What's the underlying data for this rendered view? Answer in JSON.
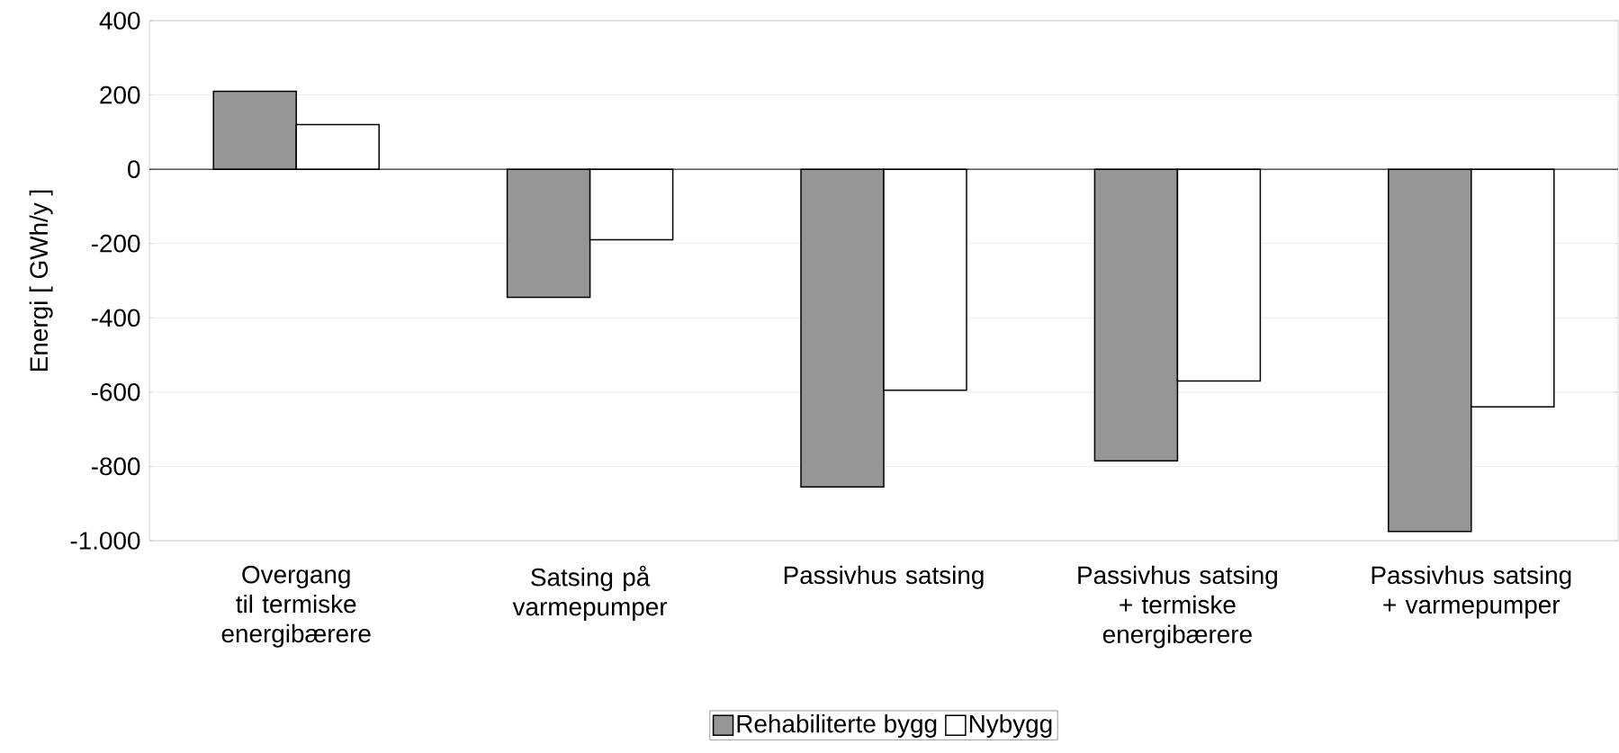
{
  "chart_data": {
    "type": "bar",
    "ylabel": "Energi [ GWh/y ]",
    "categories": [
      "Overgang til termiske energibærere",
      "Satsing på varmepumper",
      "Passivhus satsing",
      "Passivhus satsing + termiske energibærere",
      "Passivhus satsing + varmepumper"
    ],
    "series": [
      {
        "name": "Rehabiliterte bygg",
        "color": "#969696",
        "values": [
          210,
          -345,
          -855,
          -785,
          -975
        ]
      },
      {
        "name": "Nybygg",
        "color": "#ffffff",
        "values": [
          120,
          -190,
          -595,
          -570,
          -640
        ]
      }
    ],
    "ylim": [
      -1000,
      400
    ],
    "yticks": [
      {
        "value": -1000,
        "label": "-1.000"
      },
      -800,
      -600,
      -400,
      -200,
      0,
      200,
      400
    ],
    "grid": "y",
    "legend": "bottom"
  }
}
